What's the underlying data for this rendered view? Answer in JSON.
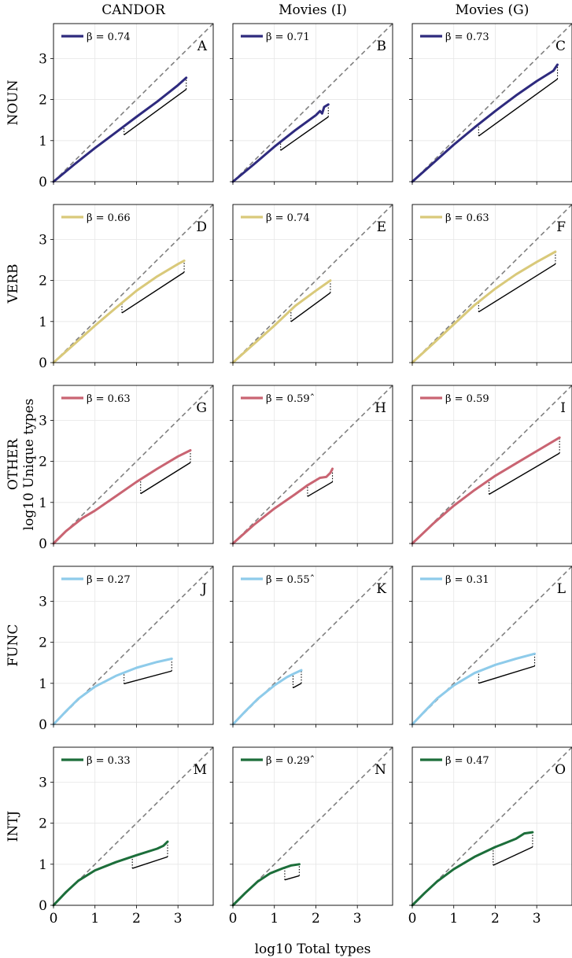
{
  "chart_data": {
    "type": "line",
    "layout": "3x5 grid of panels",
    "xlabel": "log10 Total types",
    "ylabel": "log10 Unique types",
    "xlim": [
      0,
      3.85
    ],
    "ylim": [
      0,
      3.85
    ],
    "xticks": [
      0,
      1,
      2,
      3
    ],
    "yticks": [
      0,
      1,
      2,
      3
    ],
    "columns": [
      "CANDOR",
      "Movies (I)",
      "Movies (G)"
    ],
    "rows": [
      {
        "name": "NOUN",
        "color": "#2e2a7e"
      },
      {
        "name": "VERB",
        "color": "#d9c97a"
      },
      {
        "name": "OTHER",
        "color": "#c96472"
      },
      {
        "name": "FUNC",
        "color": "#8ecbea"
      },
      {
        "name": "INTJ",
        "color": "#1c6e3a"
      }
    ],
    "reference_line": "y = x (dashed)",
    "panels": [
      {
        "letter": "A",
        "legend": "β = 0.74",
        "beta": 0.74,
        "x_end": 3.2,
        "y_end": 2.53,
        "curve": [
          [
            0,
            0
          ],
          [
            0.5,
            0.42
          ],
          [
            1,
            0.82
          ],
          [
            1.5,
            1.2
          ],
          [
            2,
            1.58
          ],
          [
            2.5,
            1.95
          ],
          [
            3,
            2.35
          ],
          [
            3.2,
            2.53
          ]
        ],
        "fit": {
          "x0": 1.7,
          "x1": 3.2,
          "y1": 2.25
        }
      },
      {
        "letter": "B",
        "legend": "β = 0.71",
        "beta": 0.71,
        "x_end": 2.3,
        "y_end": 1.88,
        "curve": [
          [
            0,
            0
          ],
          [
            0.5,
            0.42
          ],
          [
            1,
            0.85
          ],
          [
            1.5,
            1.25
          ],
          [
            2,
            1.62
          ],
          [
            2.1,
            1.72
          ],
          [
            2.15,
            1.66
          ],
          [
            2.2,
            1.82
          ],
          [
            2.3,
            1.88
          ]
        ],
        "fit": {
          "x0": 1.15,
          "x1": 2.3,
          "y1": 1.58
        }
      },
      {
        "letter": "C",
        "legend": "β = 0.73",
        "beta": 0.73,
        "x_end": 3.5,
        "y_end": 2.85,
        "curve": [
          [
            0,
            0
          ],
          [
            0.5,
            0.45
          ],
          [
            1,
            0.9
          ],
          [
            1.5,
            1.32
          ],
          [
            2,
            1.72
          ],
          [
            2.5,
            2.1
          ],
          [
            3,
            2.45
          ],
          [
            3.4,
            2.7
          ],
          [
            3.5,
            2.85
          ]
        ],
        "fit": {
          "x0": 1.6,
          "x1": 3.5,
          "y1": 2.5
        }
      },
      {
        "letter": "D",
        "legend": "β = 0.66",
        "beta": 0.66,
        "x_end": 3.15,
        "y_end": 2.48,
        "curve": [
          [
            0,
            0
          ],
          [
            0.5,
            0.45
          ],
          [
            1,
            0.9
          ],
          [
            1.5,
            1.33
          ],
          [
            2,
            1.75
          ],
          [
            2.5,
            2.1
          ],
          [
            3,
            2.4
          ],
          [
            3.15,
            2.48
          ]
        ],
        "fit": {
          "x0": 1.65,
          "x1": 3.15,
          "y1": 2.2
        }
      },
      {
        "letter": "E",
        "legend": "β = 0.74",
        "beta": 0.74,
        "x_end": 2.35,
        "y_end": 2.0,
        "curve": [
          [
            0,
            0
          ],
          [
            0.5,
            0.45
          ],
          [
            1,
            0.9
          ],
          [
            1.5,
            1.38
          ],
          [
            2,
            1.75
          ],
          [
            2.35,
            2.0
          ]
        ],
        "fit": {
          "x0": 1.4,
          "x1": 2.35,
          "y1": 1.7
        }
      },
      {
        "letter": "F",
        "legend": "β = 0.63",
        "beta": 0.63,
        "x_end": 3.45,
        "y_end": 2.7,
        "curve": [
          [
            0,
            0
          ],
          [
            0.5,
            0.46
          ],
          [
            1,
            0.93
          ],
          [
            1.5,
            1.4
          ],
          [
            2,
            1.8
          ],
          [
            2.5,
            2.15
          ],
          [
            3,
            2.45
          ],
          [
            3.45,
            2.7
          ]
        ],
        "fit": {
          "x0": 1.6,
          "x1": 3.45,
          "y1": 2.4
        }
      },
      {
        "letter": "G",
        "legend": "β = 0.63",
        "beta": 0.63,
        "x_end": 3.3,
        "y_end": 2.27,
        "curve": [
          [
            0,
            0
          ],
          [
            0.3,
            0.3
          ],
          [
            0.7,
            0.62
          ],
          [
            1,
            0.8
          ],
          [
            1.5,
            1.15
          ],
          [
            2,
            1.5
          ],
          [
            2.5,
            1.82
          ],
          [
            3,
            2.12
          ],
          [
            3.3,
            2.27
          ]
        ],
        "fit": {
          "x0": 2.1,
          "x1": 3.3,
          "y1": 1.97
        }
      },
      {
        "letter": "H",
        "legend": "β = 0.59ˆ",
        "beta": 0.59,
        "x_end": 2.4,
        "y_end": 1.82,
        "curve": [
          [
            0,
            0
          ],
          [
            0.5,
            0.45
          ],
          [
            1,
            0.85
          ],
          [
            1.5,
            1.2
          ],
          [
            1.8,
            1.42
          ],
          [
            2.1,
            1.6
          ],
          [
            2.25,
            1.62
          ],
          [
            2.35,
            1.72
          ],
          [
            2.4,
            1.82
          ]
        ],
        "fit": {
          "x0": 1.8,
          "x1": 2.4,
          "y1": 1.5
        }
      },
      {
        "letter": "I",
        "legend": "β = 0.59",
        "beta": 0.59,
        "x_end": 3.55,
        "y_end": 2.58,
        "curve": [
          [
            0,
            0
          ],
          [
            0.5,
            0.48
          ],
          [
            1,
            0.92
          ],
          [
            1.5,
            1.3
          ],
          [
            2,
            1.65
          ],
          [
            2.5,
            1.95
          ],
          [
            3,
            2.25
          ],
          [
            3.55,
            2.58
          ]
        ],
        "fit": {
          "x0": 1.85,
          "x1": 3.55,
          "y1": 2.2
        }
      },
      {
        "letter": "J",
        "legend": "β = 0.27",
        "beta": 0.27,
        "x_end": 2.85,
        "y_end": 1.6,
        "curve": [
          [
            0,
            0
          ],
          [
            0.3,
            0.32
          ],
          [
            0.6,
            0.62
          ],
          [
            1,
            0.92
          ],
          [
            1.5,
            1.18
          ],
          [
            2,
            1.38
          ],
          [
            2.5,
            1.52
          ],
          [
            2.85,
            1.6
          ]
        ],
        "fit": {
          "x0": 1.7,
          "x1": 2.85,
          "y1": 1.3
        }
      },
      {
        "letter": "K",
        "legend": "β = 0.55ˆ",
        "beta": 0.55,
        "x_end": 1.65,
        "y_end": 1.32,
        "curve": [
          [
            0,
            0
          ],
          [
            0.3,
            0.32
          ],
          [
            0.6,
            0.62
          ],
          [
            1,
            0.95
          ],
          [
            1.3,
            1.15
          ],
          [
            1.5,
            1.25
          ],
          [
            1.65,
            1.32
          ]
        ],
        "fit": {
          "x0": 1.45,
          "x1": 1.65,
          "y1": 1.0
        }
      },
      {
        "letter": "L",
        "legend": "β = 0.31",
        "beta": 0.31,
        "x_end": 2.95,
        "y_end": 1.72,
        "curve": [
          [
            0,
            0
          ],
          [
            0.3,
            0.32
          ],
          [
            0.6,
            0.63
          ],
          [
            1,
            0.95
          ],
          [
            1.5,
            1.25
          ],
          [
            2,
            1.45
          ],
          [
            2.5,
            1.6
          ],
          [
            2.95,
            1.72
          ]
        ],
        "fit": {
          "x0": 1.6,
          "x1": 2.95,
          "y1": 1.42
        }
      },
      {
        "letter": "M",
        "legend": "β = 0.33",
        "beta": 0.33,
        "x_end": 2.75,
        "y_end": 1.55,
        "curve": [
          [
            0,
            0
          ],
          [
            0.3,
            0.32
          ],
          [
            0.6,
            0.6
          ],
          [
            1,
            0.85
          ],
          [
            1.5,
            1.05
          ],
          [
            2,
            1.22
          ],
          [
            2.5,
            1.38
          ],
          [
            2.65,
            1.45
          ],
          [
            2.75,
            1.55
          ]
        ],
        "fit": {
          "x0": 1.9,
          "x1": 2.75,
          "y1": 1.18
        }
      },
      {
        "letter": "N",
        "legend": "β = 0.29ˆ",
        "beta": 0.29,
        "x_end": 1.6,
        "y_end": 1.0,
        "curve": [
          [
            0,
            0
          ],
          [
            0.3,
            0.3
          ],
          [
            0.6,
            0.58
          ],
          [
            0.9,
            0.78
          ],
          [
            1.2,
            0.9
          ],
          [
            1.4,
            0.97
          ],
          [
            1.6,
            1.0
          ]
        ],
        "fit": {
          "x0": 1.25,
          "x1": 1.6,
          "y1": 0.72
        }
      },
      {
        "letter": "O",
        "legend": "β = 0.47",
        "beta": 0.47,
        "x_end": 2.9,
        "y_end": 1.78,
        "curve": [
          [
            0,
            0
          ],
          [
            0.3,
            0.3
          ],
          [
            0.6,
            0.58
          ],
          [
            1,
            0.88
          ],
          [
            1.5,
            1.18
          ],
          [
            2,
            1.42
          ],
          [
            2.5,
            1.62
          ],
          [
            2.7,
            1.75
          ],
          [
            2.9,
            1.78
          ]
        ],
        "fit": {
          "x0": 1.95,
          "x1": 2.9,
          "y1": 1.42
        }
      }
    ]
  }
}
